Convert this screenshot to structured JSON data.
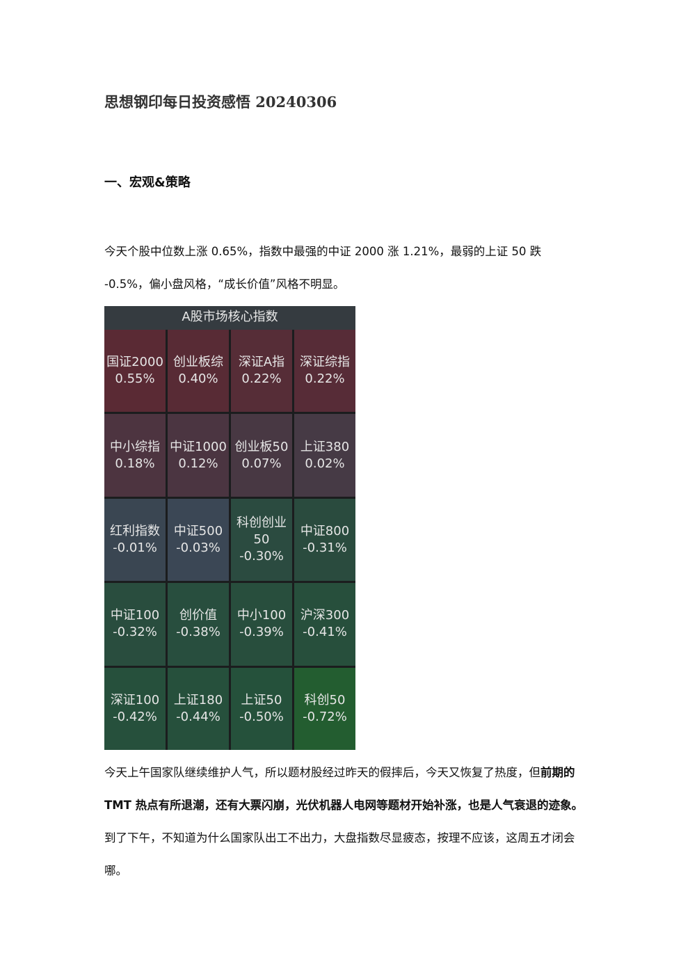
{
  "header": {
    "title": "思想钢印每日投资感悟 20240306"
  },
  "section": {
    "heading": "一、宏观&策略"
  },
  "paragraphs": [
    {
      "segments": [
        {
          "text": "今天个股中位数上涨 0.65%，指数中最强的中证 2000 涨 1.21%，最弱的上证 50 跌 -0.5%，偏小盘风格，“成长价值”风格不明显。",
          "bold": false
        }
      ]
    },
    {
      "segments": [
        {
          "text": "今天上午国家队继续维护人气，所以题材股经过昨天的假摔后，今天又恢复了热度，但",
          "bold": false
        },
        {
          "text": "前期的 TMT 热点有所退潮，还有大票闪崩，光伏机器人电网等题材开始补涨，也是人气衰退的迹象。",
          "bold": true
        },
        {
          "text": "到了下午，不知道为什么国家队出工不出力，大盘指数尽显疲态，按理不应该，这周五才闭会哪。",
          "bold": false
        }
      ]
    }
  ],
  "figure": {
    "title": "A股市场核心指数",
    "cells": [
      {
        "name": "国证2000",
        "value": "0.55%",
        "color": "#5a2a34"
      },
      {
        "name": "创业板综",
        "value": "0.40%",
        "color": "#582b35"
      },
      {
        "name": "深证A指",
        "value": "0.22%",
        "color": "#562d37"
      },
      {
        "name": "深证综指",
        "value": "0.22%",
        "color": "#572c37"
      },
      {
        "name": "中小综指",
        "value": "0.18%",
        "color": "#4d3440"
      },
      {
        "name": "中证1000",
        "value": "0.12%",
        "color": "#4b3541"
      },
      {
        "name": "创业板50",
        "value": "0.07%",
        "color": "#483843"
      },
      {
        "name": "上证380",
        "value": "0.02%",
        "color": "#463a45"
      },
      {
        "name": "红利指数",
        "value": "-0.01%",
        "color": "#3a4652"
      },
      {
        "name": "中证500",
        "value": "-0.03%",
        "color": "#3b4755"
      },
      {
        "name": "科创创业50",
        "value": "-0.30%",
        "color": "#2b4b40"
      },
      {
        "name": "中证800",
        "value": "-0.31%",
        "color": "#2a4b3e"
      },
      {
        "name": "中证100",
        "value": "-0.32%",
        "color": "#294d3e"
      },
      {
        "name": "创价值",
        "value": "-0.38%",
        "color": "#284e3e"
      },
      {
        "name": "中小100",
        "value": "-0.39%",
        "color": "#284e3d"
      },
      {
        "name": "沪深300",
        "value": "-0.41%",
        "color": "#274f3c"
      },
      {
        "name": "深证100",
        "value": "-0.42%",
        "color": "#26503c"
      },
      {
        "name": "上证180",
        "value": "-0.44%",
        "color": "#26503c"
      },
      {
        "name": "上证50",
        "value": "-0.50%",
        "color": "#25513b"
      },
      {
        "name": "科创50",
        "value": "-0.72%",
        "color": "#235d30"
      }
    ]
  }
}
